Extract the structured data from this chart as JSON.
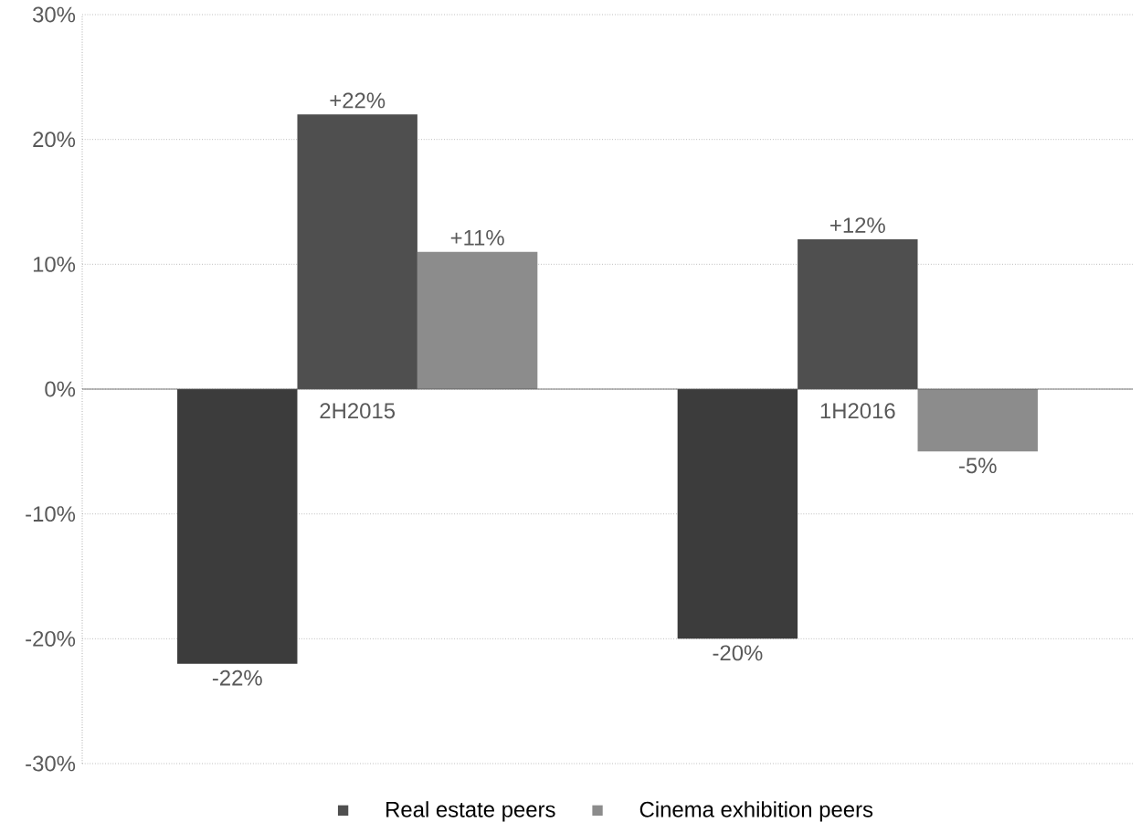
{
  "chart_data": {
    "type": "bar",
    "categories": [
      "2H2015",
      "1H2016"
    ],
    "series": [
      {
        "color": "#3c3c3c",
        "values": [
          -22,
          -20
        ],
        "value_labels": [
          "-22%",
          "-20%"
        ]
      },
      {
        "name": "Real estate peers",
        "color": "#4f4f4f",
        "values": [
          22,
          12
        ],
        "value_labels": [
          "+22%",
          "+12%"
        ]
      },
      {
        "name": "Cinema exhibition peers",
        "color": "#8c8c8c",
        "values": [
          11,
          -5
        ],
        "value_labels": [
          "+11%",
          "-5%"
        ]
      }
    ],
    "ylim": [
      -30,
      30
    ],
    "yticks": [
      {
        "value": -30,
        "label": "-30%"
      },
      {
        "value": -20,
        "label": "-20%"
      },
      {
        "value": -10,
        "label": "-10%"
      },
      {
        "value": 0,
        "label": "0%"
      },
      {
        "value": 10,
        "label": "10%"
      },
      {
        "value": 20,
        "label": "20%"
      },
      {
        "value": 30,
        "label": "30%"
      }
    ],
    "grid": "y",
    "legend": "bottom"
  }
}
